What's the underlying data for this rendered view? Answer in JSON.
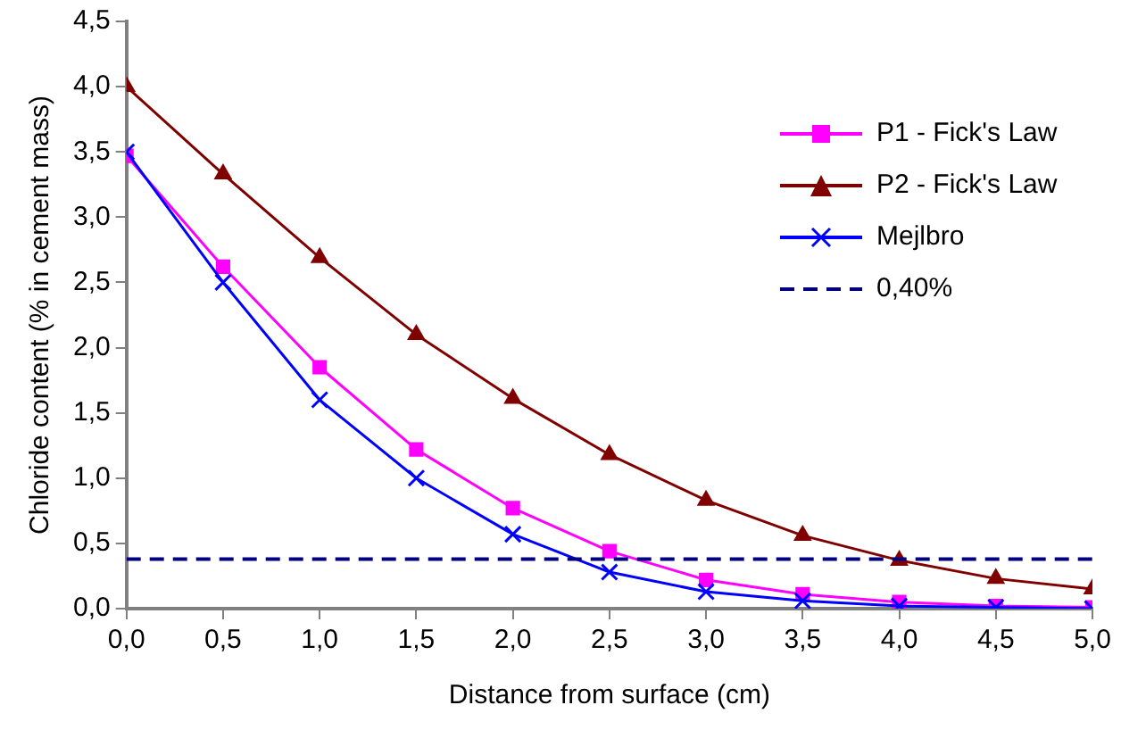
{
  "chart_data": {
    "type": "line",
    "xlabel": "Distance from surface (cm)",
    "ylabel": "Chloride content (% in cement mass)",
    "x": [
      0,
      0.5,
      1,
      1.5,
      2,
      2.5,
      3,
      3.5,
      4,
      4.5,
      5
    ],
    "series": [
      {
        "name": "P1 - Fick's Law",
        "color": "#ff00ff",
        "marker": "square",
        "values": [
          3.47,
          2.62,
          1.85,
          1.22,
          0.77,
          0.44,
          0.22,
          0.11,
          0.05,
          0.02,
          0.01
        ]
      },
      {
        "name": "P2 - Fick's Law",
        "color": "#800000",
        "marker": "triangle",
        "values": [
          4.0,
          3.33,
          2.69,
          2.1,
          1.61,
          1.18,
          0.83,
          0.56,
          0.37,
          0.23,
          0.15
        ]
      },
      {
        "name": "Mejlbro",
        "color": "#0000ff",
        "marker": "cross",
        "values": [
          3.5,
          2.5,
          1.6,
          1.0,
          0.57,
          0.28,
          0.13,
          0.06,
          0.02,
          0.01,
          0.0
        ]
      },
      {
        "name": "0,40%",
        "color": "#000080",
        "marker": "none",
        "line_style": "dashed",
        "values": [
          0.38,
          0.38,
          0.38,
          0.38,
          0.38,
          0.38,
          0.38,
          0.38,
          0.38,
          0.38,
          0.38
        ]
      }
    ],
    "xlim": [
      0,
      5
    ],
    "xticks": [
      {
        "value": 0,
        "label": "0,0"
      },
      {
        "value": 0.5,
        "label": "0,5"
      },
      {
        "value": 1,
        "label": "1,0"
      },
      {
        "value": 1.5,
        "label": "1,5"
      },
      {
        "value": 2,
        "label": "2,0"
      },
      {
        "value": 2.5,
        "label": "2,5"
      },
      {
        "value": 3,
        "label": "3,0"
      },
      {
        "value": 3.5,
        "label": "3,5"
      },
      {
        "value": 4,
        "label": "4,0"
      },
      {
        "value": 4.5,
        "label": "4,5"
      },
      {
        "value": 5,
        "label": "5,0"
      }
    ],
    "ylim": [
      0,
      4.5
    ],
    "yticks": [
      {
        "value": 0,
        "label": "0,0"
      },
      {
        "value": 0.5,
        "label": "0,5"
      },
      {
        "value": 1,
        "label": "1,0"
      },
      {
        "value": 1.5,
        "label": "1,5"
      },
      {
        "value": 2,
        "label": "2,0"
      },
      {
        "value": 2.5,
        "label": "2,5"
      },
      {
        "value": 3,
        "label": "3,0"
      },
      {
        "value": 3.5,
        "label": "3,5"
      },
      {
        "value": 4,
        "label": "4,0"
      },
      {
        "value": 4.5,
        "label": "4,5"
      }
    ],
    "grid": false,
    "legend": "top right"
  }
}
